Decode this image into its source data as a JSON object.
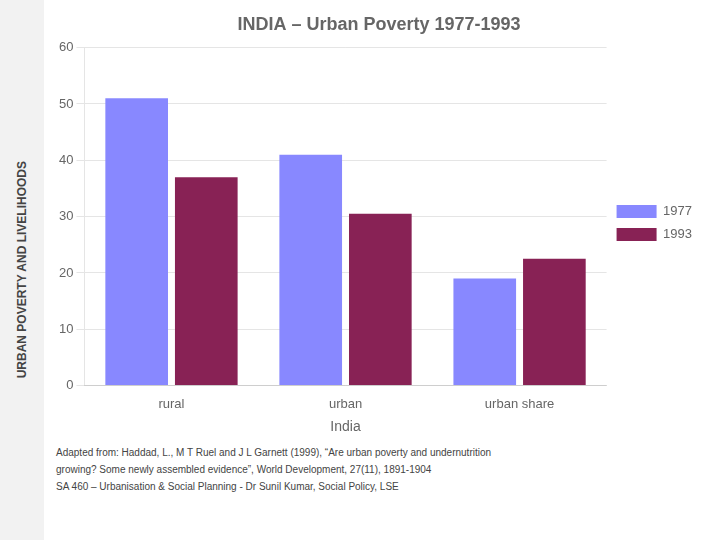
{
  "chart_data": {
    "type": "bar",
    "title": "INDIA – Urban Poverty 1977-1993",
    "xlabel": "India",
    "categories": [
      "rural",
      "urban",
      "urban share"
    ],
    "series": [
      {
        "name": "1977",
        "color": "#8888ff",
        "values": [
          51,
          41,
          19
        ]
      },
      {
        "name": "1993",
        "color": "#882255",
        "values": [
          37,
          30.5,
          22.5
        ]
      }
    ],
    "ylim": [
      0,
      60
    ],
    "yticks": [
      0,
      10,
      20,
      30,
      40,
      50,
      60
    ],
    "grid": true,
    "legend": "right",
    "annotations": [
      "URBAN POVERTY AND LIVELIHOODS",
      "Adapted from: Haddad, L., M T Ruel and J L Garnett (1999), “Are urban poverty and undernutrition",
      "growing? Some newly assembled evidence”, World Development, 27(11), 1891-1904",
      "SA 460 – Urbanisation & Social Planning - Dr Sunil Kumar, Social Policy, LSE"
    ]
  }
}
